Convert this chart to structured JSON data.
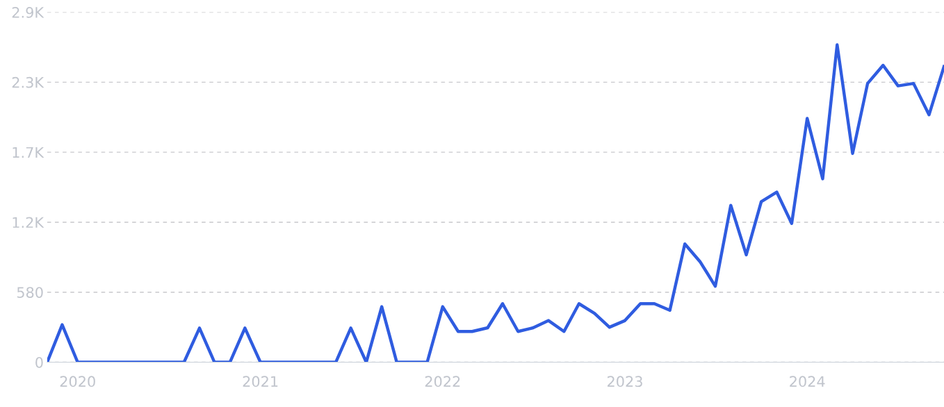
{
  "chart_data": {
    "type": "line",
    "x": [
      "2019-11",
      "2019-12",
      "2020-01",
      "2020-02",
      "2020-03",
      "2020-04",
      "2020-05",
      "2020-06",
      "2020-07",
      "2020-08",
      "2020-09",
      "2020-10",
      "2020-11",
      "2020-12",
      "2021-01",
      "2021-02",
      "2021-03",
      "2021-04",
      "2021-05",
      "2021-06",
      "2021-07",
      "2021-08",
      "2021-09",
      "2021-10",
      "2021-11",
      "2021-12",
      "2022-01",
      "2022-02",
      "2022-03",
      "2022-04",
      "2022-05",
      "2022-06",
      "2022-07",
      "2022-08",
      "2022-09",
      "2022-10",
      "2022-11",
      "2022-12",
      "2023-01",
      "2023-02",
      "2023-03",
      "2023-04",
      "2023-05",
      "2023-06",
      "2023-07",
      "2023-08",
      "2023-09",
      "2023-10",
      "2023-11",
      "2023-12",
      "2024-01",
      "2024-02",
      "2024-03",
      "2024-04",
      "2024-05",
      "2024-06",
      "2024-07",
      "2024-08",
      "2024-09",
      "2024-10"
    ],
    "series": [
      {
        "color": "#2f5ce0",
        "values": [
          0,
          310,
          0,
          0,
          0,
          0,
          0,
          0,
          0,
          0,
          283,
          0,
          0,
          283,
          0,
          0,
          0,
          0,
          0,
          0,
          283,
          0,
          460,
          0,
          0,
          0,
          460,
          255,
          255,
          285,
          485,
          255,
          285,
          345,
          255,
          485,
          405,
          290,
          345,
          485,
          485,
          430,
          980,
          830,
          630,
          1300,
          890,
          1330,
          1410,
          1150,
          2020,
          1520,
          2630,
          1730,
          2310,
          2460,
          2290,
          2310,
          2050,
          2450
        ]
      }
    ],
    "xlim": [
      "2019-11",
      "2024-10"
    ],
    "xticks": [
      {
        "value": "2020-01",
        "label": "2020"
      },
      {
        "value": "2021-01",
        "label": "2021"
      },
      {
        "value": "2022-01",
        "label": "2022"
      },
      {
        "value": "2023-01",
        "label": "2023"
      },
      {
        "value": "2024-01",
        "label": "2024"
      }
    ],
    "ylim": [
      0,
      2900
    ],
    "yticks": [
      0,
      580,
      {
        "value": 1160,
        "label": "1.2K"
      },
      {
        "value": 1740,
        "label": "1.7K"
      },
      {
        "value": 2320,
        "label": "2.3K"
      },
      {
        "value": 2900,
        "label": "2.9K"
      }
    ],
    "grid": "y",
    "marker": "none",
    "line_style": "solid"
  }
}
